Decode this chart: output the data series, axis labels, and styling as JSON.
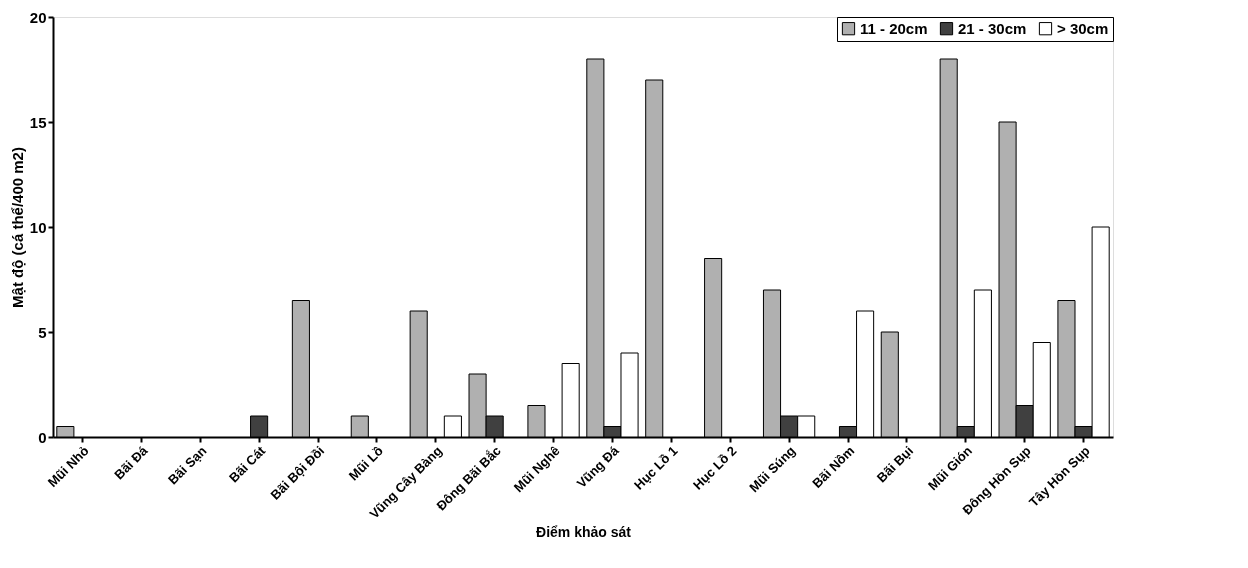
{
  "chart_data": {
    "type": "bar",
    "xlabel": "Điểm khảo sát",
    "ylabel": "Mật độ (cá thể/400 m2)",
    "categories": [
      "Mũi Nhỏ",
      "Bãi Đá",
      "Bãi Sạn",
      "Bãi Cát",
      "Bãi Bội Đồi",
      "Mũi Lồ",
      "Vũng Cây Bàng",
      "Đông Bãi Bắc",
      "Mũi Nghê",
      "Vũng Đá",
      "Hục Lồ 1",
      "Hục Lồ 2",
      "Mũi Súng",
      "Bãi Nồm",
      "Bãi Bụi",
      "Mũi Gión",
      "Đông Hòn Sụp",
      "Tây Hòn Sụp"
    ],
    "series": [
      {
        "name": "11 - 20cm",
        "color": "#b0b0b0",
        "values": [
          0.5,
          0,
          0,
          0,
          6.5,
          1,
          6,
          3,
          1.5,
          18,
          17,
          8.5,
          7,
          0,
          5,
          18,
          15,
          6.5
        ]
      },
      {
        "name": "21 - 30cm",
        "color": "#404040",
        "values": [
          0,
          0,
          0,
          1,
          0,
          0,
          0,
          1,
          0,
          0.5,
          0,
          0,
          1,
          0.5,
          0,
          0.5,
          1.5,
          0.5
        ]
      },
      {
        "name": "> 30cm",
        "color": "#ffffff",
        "values": [
          0,
          0,
          0,
          0,
          0,
          0,
          1,
          0,
          3.5,
          4,
          0,
          0,
          1,
          6,
          0,
          7,
          4.5,
          10
        ]
      }
    ],
    "ylim": [
      0,
      20
    ],
    "yticks": [
      0,
      5,
      10,
      15,
      20
    ],
    "grid": false,
    "legend": "top right"
  }
}
